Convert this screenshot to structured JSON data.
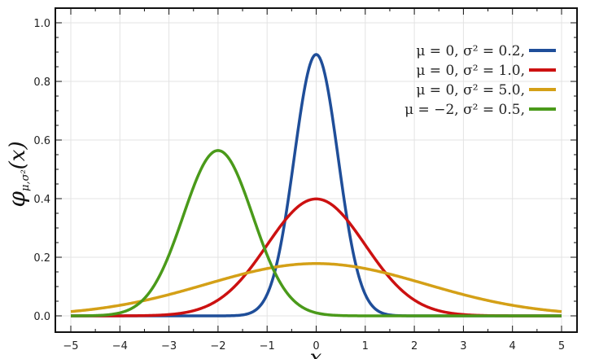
{
  "chart_data": {
    "type": "line",
    "xlabel": "x",
    "ylabel": "φμ,σ²(x)",
    "ylabel_parts": {
      "phi": "φ",
      "sub": "μ,σ²",
      "arg": "(x)"
    },
    "xlim": [
      -5,
      5
    ],
    "ylim": [
      0,
      1.0
    ],
    "xticks": [
      -5,
      -4,
      -3,
      -2,
      -1,
      0,
      1,
      2,
      3,
      4,
      5
    ],
    "yticks": [
      0.0,
      0.2,
      0.4,
      0.6,
      0.8,
      1.0
    ],
    "xtick_labels": [
      "−5",
      "−4",
      "−3",
      "−2",
      "−1",
      "0",
      "1",
      "2",
      "3",
      "4",
      "5"
    ],
    "ytick_labels": [
      "0.0",
      "0.2",
      "0.4",
      "0.6",
      "0.8",
      "1.0"
    ],
    "grid": true,
    "legend_position": "top-right",
    "series": [
      {
        "name": "μ = 0,   σ² = 0.2,",
        "mu": 0,
        "sigma2": 0.2,
        "color": "#1f4e99"
      },
      {
        "name": "μ = 0,   σ² = 1.0,",
        "mu": 0,
        "sigma2": 1.0,
        "color": "#cc1111"
      },
      {
        "name": "μ = 0,   σ² = 5.0,",
        "mu": 0,
        "sigma2": 5.0,
        "color": "#d4a017"
      },
      {
        "name": "μ = −2, σ² = 0.5,",
        "mu": -2,
        "sigma2": 0.5,
        "color": "#4a9a1a"
      }
    ]
  }
}
